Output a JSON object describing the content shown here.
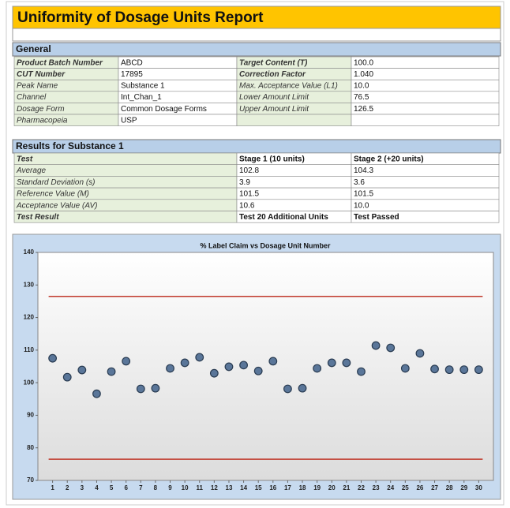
{
  "header": {
    "title": "Uniformity of Dosage Units Report"
  },
  "general": {
    "title": "General",
    "rows": [
      [
        "Product Batch Number",
        "ABCD",
        "Target Content (T)",
        "100.0"
      ],
      [
        "CUT Number",
        "17895",
        "Correction Factor",
        "1.040"
      ],
      [
        "Peak Name",
        "Substance 1",
        "Max. Acceptance Value (L1)",
        "10.0"
      ],
      [
        "Channel",
        "Int_Chan_1",
        "Lower Amount Limit",
        "76.5"
      ],
      [
        "Dosage Form",
        "Common Dosage Forms",
        "Upper Amount Limit",
        "126.5"
      ],
      [
        "Pharmacopeia",
        "USP"
      ]
    ]
  },
  "results": {
    "title": "Results for Substance 1",
    "rows": [
      [
        "Test",
        "Stage 1 (10 units)",
        "Stage 2 (+20 units)"
      ],
      [
        "Average",
        "102.8",
        "104.3"
      ],
      [
        "Standard Deviation (s)",
        "3.9",
        "3.6"
      ],
      [
        "Reference Value (M)",
        "101.5",
        "101.5"
      ],
      [
        "Acceptance Value (AV)",
        "10.6",
        "10.0"
      ],
      [
        "Test Result",
        "Test 20 Additional Units",
        "Test Passed"
      ]
    ]
  },
  "chart_data": {
    "type": "scatter",
    "title": "% Label Claim vs Dosage Unit Number",
    "x": [
      1,
      2,
      3,
      4,
      5,
      6,
      7,
      8,
      9,
      10,
      11,
      12,
      13,
      14,
      15,
      16,
      17,
      18,
      19,
      20,
      21,
      22,
      23,
      24,
      25,
      26,
      27,
      28,
      29,
      30
    ],
    "values": [
      107.5,
      101.7,
      103.9,
      96.6,
      103.4,
      106.6,
      98.1,
      98.3,
      104.4,
      106.1,
      107.8,
      102.9,
      104.9,
      105.4,
      103.6,
      106.6,
      98.1,
      98.3,
      104.4,
      106.1,
      106.1,
      103.4,
      111.4,
      110.7,
      104.4,
      109,
      104.2,
      104,
      104,
      104
    ],
    "color": "#5a7699",
    "xlim": [
      0,
      31
    ],
    "xticks": [
      1,
      2,
      3,
      4,
      5,
      6,
      7,
      8,
      9,
      10,
      11,
      12,
      13,
      14,
      15,
      16,
      17,
      18,
      19,
      20,
      21,
      22,
      23,
      24,
      25,
      26,
      27,
      28,
      29,
      30
    ],
    "ylim": [
      70,
      140
    ],
    "yticks": [
      70,
      80,
      90,
      100,
      110,
      120,
      130,
      140
    ],
    "reference_lines": [
      126.5,
      76.5
    ],
    "reference_color": "#c0392b"
  }
}
